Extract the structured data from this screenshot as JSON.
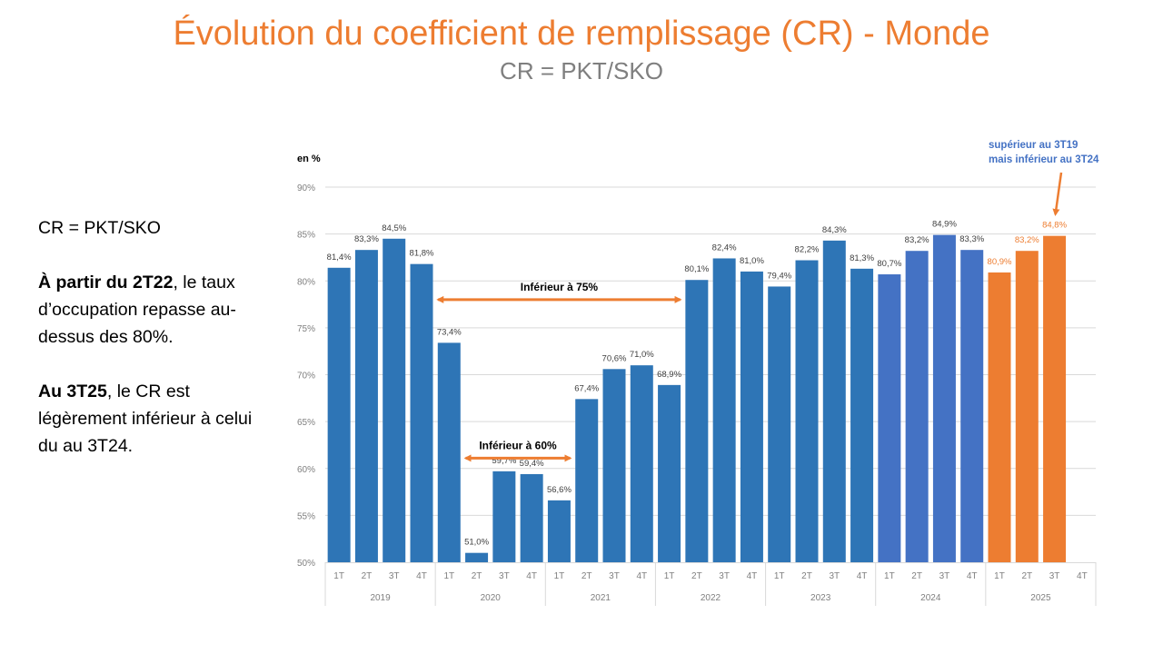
{
  "header": {
    "title": "Évolution du coefficient de remplissage (CR) - Monde",
    "subtitle": "CR = PKT/SKO"
  },
  "side_text": {
    "formula": "CR = PKT/SKO",
    "p1_bold": "À partir du 2T22",
    "p1_rest": ", le taux d’occupation repasse au-dessus des 80%.",
    "p2_bold": "Au 3T25",
    "p2_rest": ", le CR est légèrement inférieur à celui du au 3T24."
  },
  "colors": {
    "series_main": "#2E75B6",
    "series_2024": "#4472C4",
    "series_2025": "#ED7D31",
    "annotation_arrow": "#ED7D31",
    "callout_text": "#4472C4",
    "grid": "#D9D9D9",
    "tick_text": "#7F7F7F"
  },
  "chart_data": {
    "type": "bar",
    "title": "Évolution du coefficient de remplissage (CR) - Monde",
    "ylabel": "en %",
    "ylim": [
      50,
      90
    ],
    "yticks": [
      50,
      55,
      60,
      65,
      70,
      75,
      80,
      85,
      90
    ],
    "ytick_labels": [
      "50%",
      "55%",
      "60%",
      "65%",
      "70%",
      "75%",
      "80%",
      "85%",
      "90%"
    ],
    "grid": true,
    "groups": [
      {
        "year": "2019",
        "quarters": [
          "1T",
          "2T",
          "3T",
          "4T"
        ],
        "values": [
          81.4,
          83.3,
          84.5,
          81.8
        ],
        "labels": [
          "81,4%",
          "83,3%",
          "84,5%",
          "81,8%"
        ],
        "color_key": "series_main"
      },
      {
        "year": "2020",
        "quarters": [
          "1T",
          "2T",
          "3T",
          "4T"
        ],
        "values": [
          73.4,
          51.0,
          59.7,
          59.4
        ],
        "labels": [
          "73,4%",
          "51,0%",
          "59,7%",
          "59,4%"
        ],
        "color_key": "series_main"
      },
      {
        "year": "2021",
        "quarters": [
          "1T",
          "2T",
          "3T",
          "4T"
        ],
        "values": [
          56.6,
          67.4,
          70.6,
          71.0
        ],
        "labels": [
          "56,6%",
          "67,4%",
          "70,6%",
          "71,0%"
        ],
        "color_key": "series_main"
      },
      {
        "year": "2022",
        "quarters": [
          "1T",
          "2T",
          "3T",
          "4T"
        ],
        "values": [
          68.9,
          80.1,
          82.4,
          81.0
        ],
        "labels": [
          "68,9%",
          "80,1%",
          "82,4%",
          "81,0%"
        ],
        "color_key": "series_main"
      },
      {
        "year": "2023",
        "quarters": [
          "1T",
          "2T",
          "3T",
          "4T"
        ],
        "values": [
          79.4,
          82.2,
          84.3,
          81.3
        ],
        "labels": [
          "79,4%",
          "82,2%",
          "84,3%",
          "81,3%"
        ],
        "color_key": "series_main"
      },
      {
        "year": "2024",
        "quarters": [
          "1T",
          "2T",
          "3T",
          "4T"
        ],
        "values": [
          80.7,
          83.2,
          84.9,
          83.3
        ],
        "labels": [
          "80,7%",
          "83,2%",
          "84,9%",
          "83,3%"
        ],
        "color_key": "series_2024"
      },
      {
        "year": "2025",
        "quarters": [
          "1T",
          "2T",
          "3T",
          "4T"
        ],
        "values": [
          80.9,
          83.2,
          84.8,
          null
        ],
        "labels": [
          "80,9%",
          "83,2%",
          "84,8%",
          ""
        ],
        "color_key": "series_2025"
      }
    ],
    "annotations": [
      {
        "text": "Inférieur à 75%",
        "level": 78,
        "from": "1T2020",
        "to": "1T2022"
      },
      {
        "text": "Inférieur à 60%",
        "level": 61.1,
        "from": "2T2020",
        "to": "1T2021"
      }
    ],
    "callout": {
      "lines": [
        "supérieur au 3T19",
        "mais inférieur au 3T24"
      ],
      "target": "3T2025"
    }
  }
}
